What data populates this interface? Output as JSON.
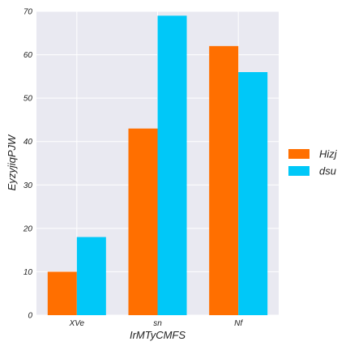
{
  "chart_data": {
    "type": "bar",
    "categories": [
      "XVe",
      "sn",
      "Nf"
    ],
    "series": [
      {
        "name": "Hizj",
        "values": [
          10,
          43,
          62
        ],
        "color": "#ff6f00"
      },
      {
        "name": "dsu",
        "values": [
          18,
          69,
          56
        ],
        "color": "#00c8f8"
      }
    ],
    "title": "",
    "xlabel": "IrMTyCMFS",
    "ylabel": "EyzyjiqPJW",
    "ylim": [
      0,
      70
    ],
    "yticks": [
      0,
      10,
      20,
      30,
      40,
      50,
      60,
      70
    ],
    "grid": true,
    "legend_position": "right",
    "plot_background": "#e9e9f1",
    "grid_color": "#ffffff"
  }
}
